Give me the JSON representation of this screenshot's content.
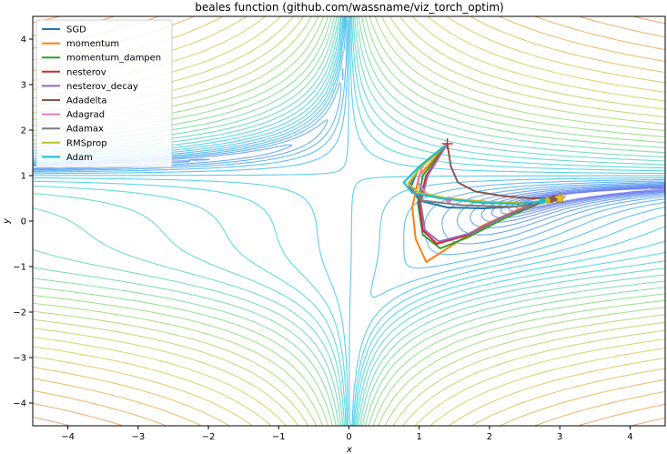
{
  "chart_data": {
    "type": "line",
    "title": "beales function (github.com/wassname/viz_torch_optim)",
    "xlabel": "x",
    "ylabel": "y",
    "xlim": [
      -4.5,
      4.5
    ],
    "ylim": [
      -4.5,
      4.5
    ],
    "xticks": [
      -4,
      -3,
      -2,
      -1,
      0,
      1,
      2,
      3,
      4
    ],
    "yticks": [
      -4,
      -3,
      -2,
      -1,
      0,
      1,
      2,
      3,
      4
    ],
    "grid": false,
    "legend_position": "top-left",
    "contours": "colored contour lines of log Beale function, rainbow colormap",
    "start": {
      "x": 1.4,
      "y": 1.7,
      "marker": "red-plus"
    },
    "minimum": {
      "x": 3.0,
      "y": 0.5,
      "marker": "gold-star"
    },
    "series": [
      {
        "name": "SGD",
        "color": "#1f77b4",
        "x": [
          1.4,
          1.0,
          0.88,
          1.0,
          1.4,
          1.9,
          2.3,
          2.58
        ],
        "y": [
          1.7,
          1.2,
          0.75,
          0.45,
          0.3,
          0.28,
          0.31,
          0.36
        ]
      },
      {
        "name": "momentum",
        "color": "#ff7f0e",
        "x": [
          1.4,
          1.0,
          0.9,
          0.95,
          1.1,
          1.4,
          1.9,
          2.4,
          2.85
        ],
        "y": [
          1.7,
          1.0,
          0.3,
          -0.4,
          -0.9,
          -0.6,
          -0.1,
          0.25,
          0.46
        ]
      },
      {
        "name": "momentum_dampen",
        "color": "#2ca02c",
        "x": [
          1.4,
          1.05,
          0.98,
          1.05,
          1.3,
          1.7,
          2.2,
          2.7,
          2.88
        ],
        "y": [
          1.7,
          1.0,
          0.4,
          -0.3,
          -0.6,
          -0.35,
          0.05,
          0.38,
          0.47
        ]
      },
      {
        "name": "nesterov",
        "color": "#d62728",
        "x": [
          1.4,
          1.1,
          1.0,
          1.05,
          1.25,
          1.7,
          2.2,
          2.7,
          2.9
        ],
        "y": [
          1.7,
          1.0,
          0.4,
          -0.2,
          -0.5,
          -0.3,
          0.1,
          0.4,
          0.48
        ]
      },
      {
        "name": "nesterov_decay",
        "color": "#9467bd",
        "x": [
          1.4,
          1.12,
          1.02,
          1.08,
          1.28,
          1.7,
          2.2,
          2.65,
          2.92
        ],
        "y": [
          1.7,
          1.0,
          0.4,
          -0.2,
          -0.45,
          -0.28,
          0.1,
          0.38,
          0.49
        ]
      },
      {
        "name": "Adadelta",
        "color": "#8c564b",
        "x": [
          1.4,
          1.45,
          1.55,
          1.8,
          2.2,
          2.6,
          2.92
        ],
        "y": [
          1.7,
          1.2,
          0.85,
          0.65,
          0.55,
          0.5,
          0.5
        ]
      },
      {
        "name": "Adagrad",
        "color": "#e377c2",
        "x": [
          1.4,
          1.05,
          0.98,
          1.1,
          1.42
        ],
        "y": [
          1.7,
          1.25,
          0.85,
          0.6,
          0.47
        ]
      },
      {
        "name": "Adamax",
        "color": "#7f7f7f",
        "x": [
          1.4,
          1.0,
          0.85,
          1.05,
          1.6,
          2.2,
          2.52
        ],
        "y": [
          1.7,
          1.15,
          0.75,
          0.45,
          0.35,
          0.32,
          0.33
        ]
      },
      {
        "name": "RMSprop",
        "color": "#bcbd22",
        "x": [
          1.4,
          1.0,
          0.84,
          1.0,
          1.4,
          2.0,
          2.5,
          2.82
        ],
        "y": [
          1.7,
          1.15,
          0.82,
          0.62,
          0.5,
          0.42,
          0.4,
          0.45
        ]
      },
      {
        "name": "Adam",
        "color": "#17becf",
        "x": [
          1.4,
          1.0,
          0.78,
          0.9,
          1.3,
          1.9,
          2.4,
          2.75
        ],
        "y": [
          1.7,
          1.2,
          0.85,
          0.62,
          0.5,
          0.4,
          0.38,
          0.44
        ]
      }
    ]
  }
}
